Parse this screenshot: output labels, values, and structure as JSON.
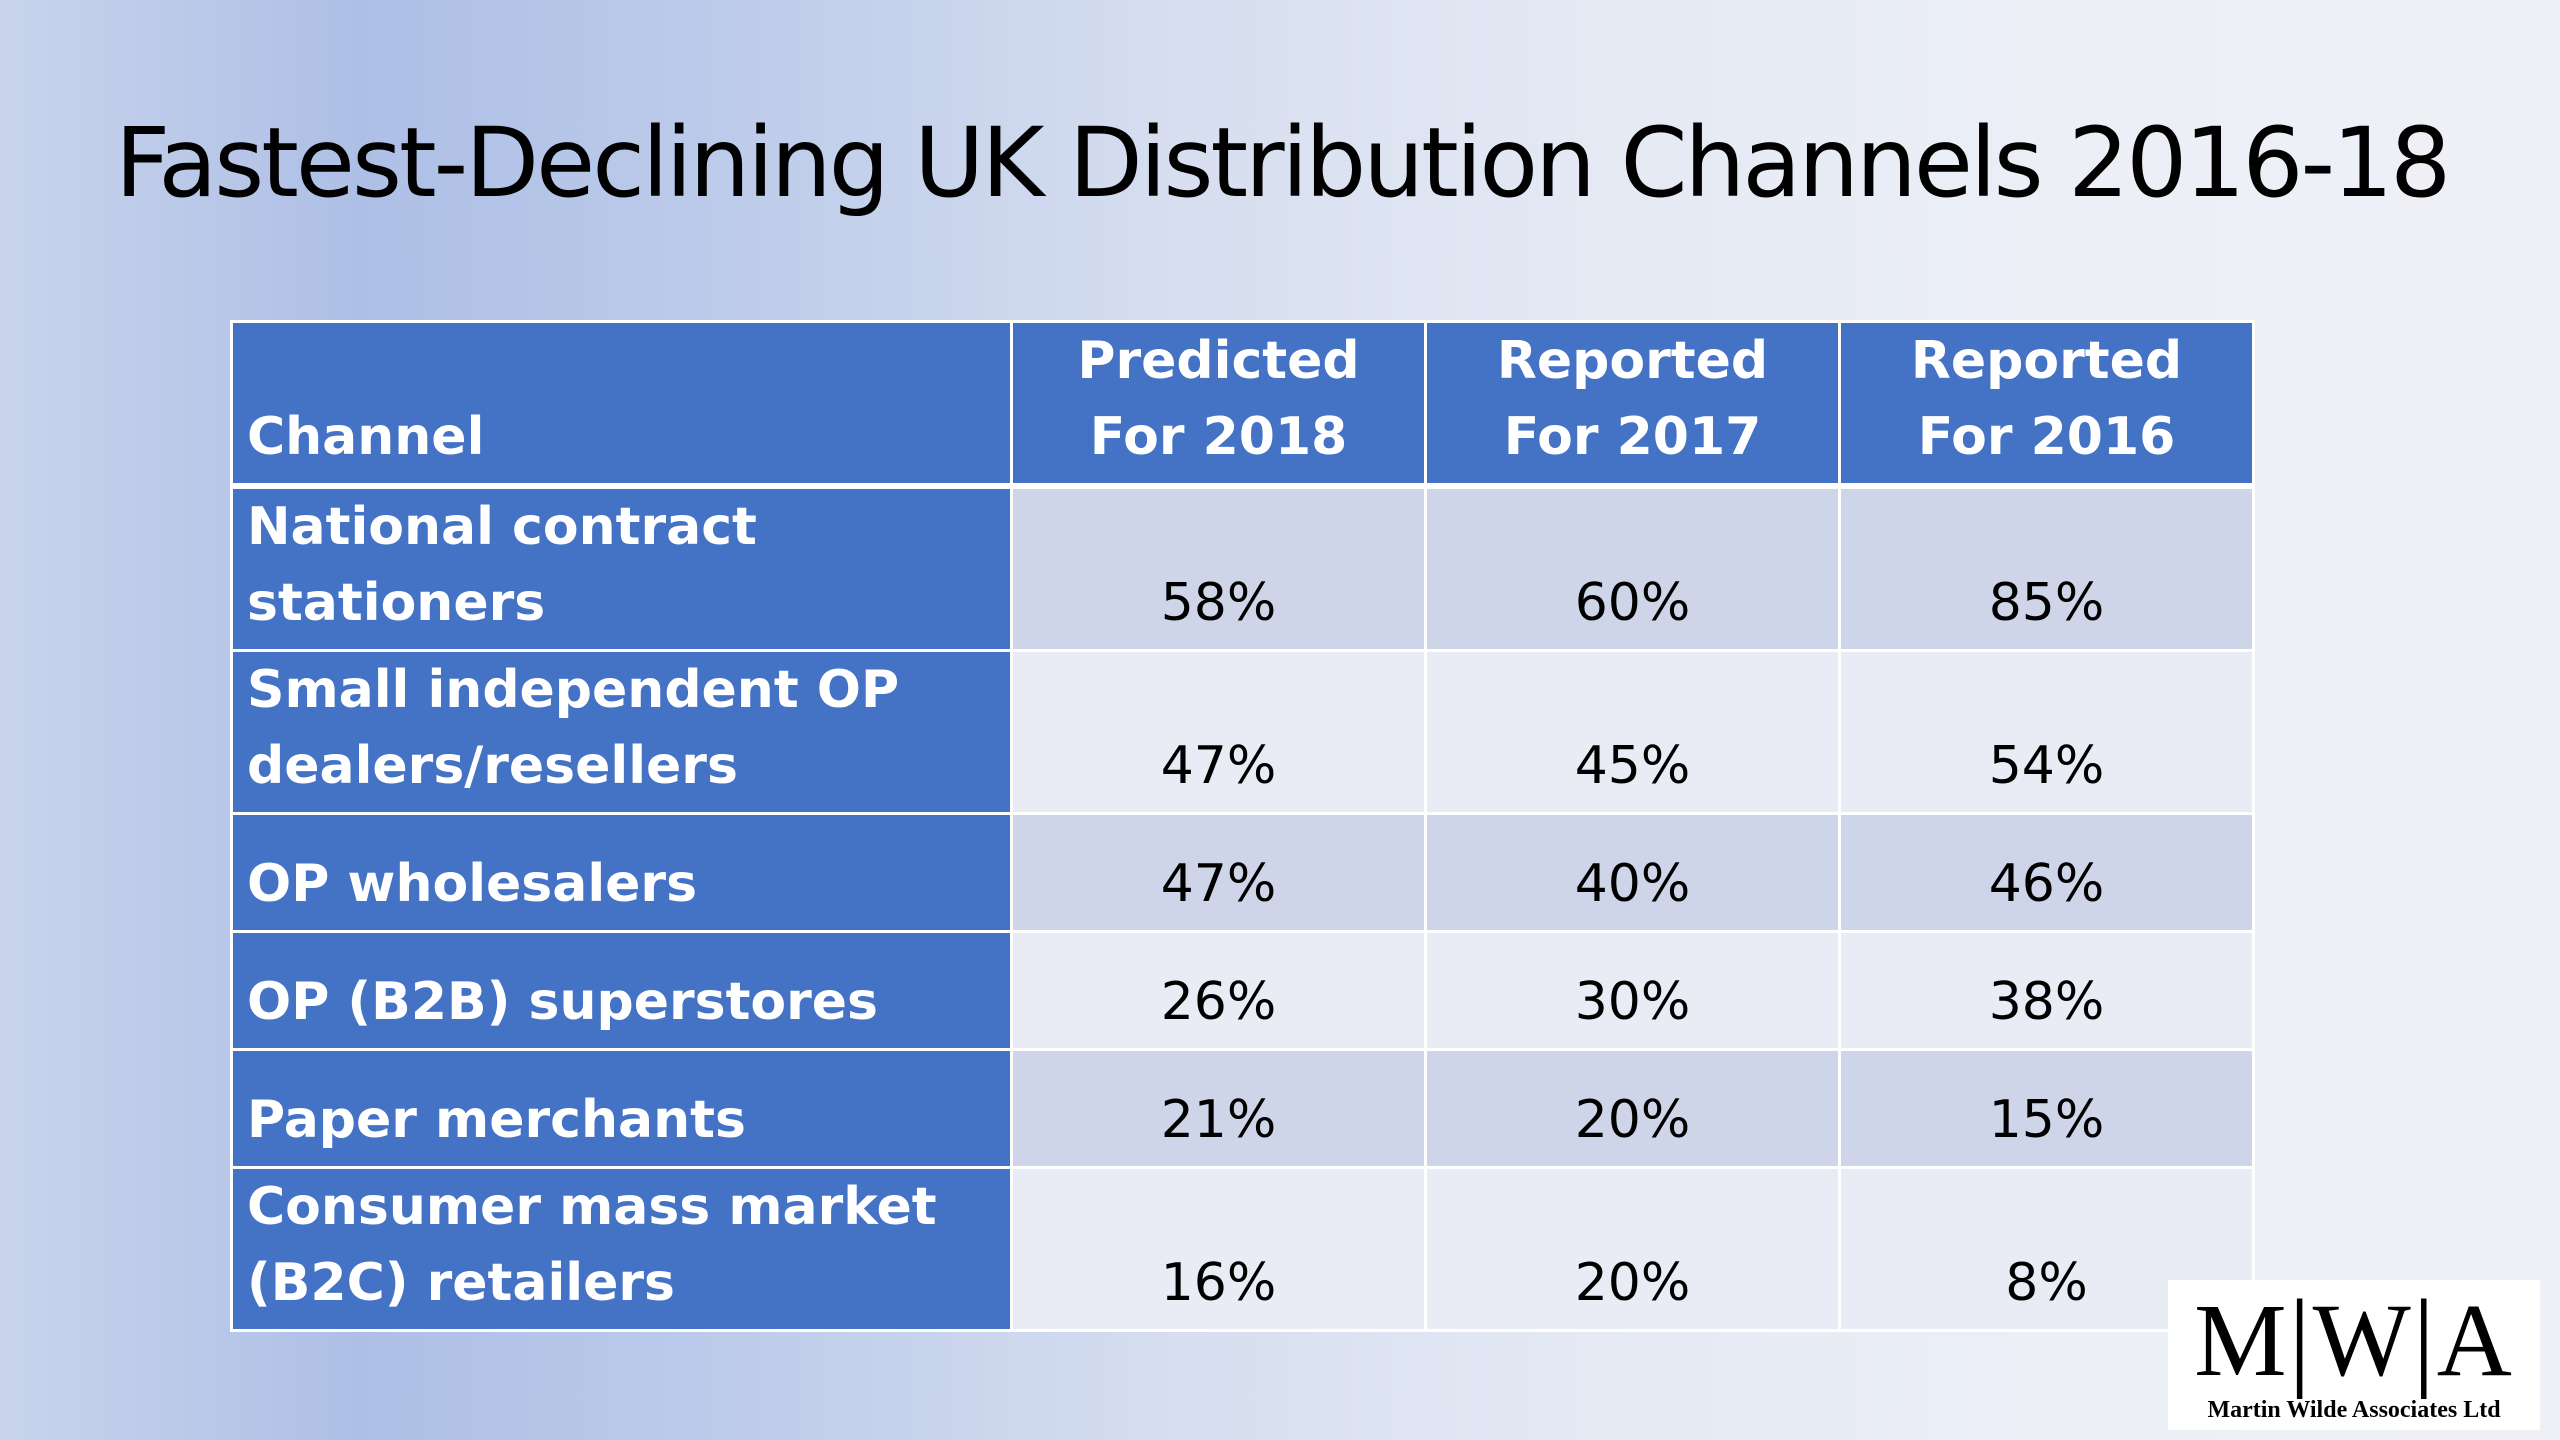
{
  "slide": {
    "title": "Fastest-Declining UK Distribution Channels 2016-18"
  },
  "table": {
    "headers": [
      "Channel",
      "Predicted For 2018",
      "Reported For 2017",
      "Reported For 2016"
    ],
    "rows": [
      {
        "channel": "National contract stationers",
        "values": [
          "58%",
          "60%",
          "85%"
        ]
      },
      {
        "channel": "Small independent OP dealers/resellers",
        "values": [
          "47%",
          "45%",
          "54%"
        ]
      },
      {
        "channel": "OP wholesalers",
        "values": [
          "47%",
          "40%",
          "46%"
        ]
      },
      {
        "channel": "OP (B2B) superstores",
        "values": [
          "26%",
          "30%",
          "38%"
        ]
      },
      {
        "channel": "Paper merchants",
        "values": [
          "21%",
          "20%",
          "15%"
        ]
      },
      {
        "channel": "Consumer mass market (B2C) retailers",
        "values": [
          "16%",
          "20%",
          "8%"
        ]
      }
    ]
  },
  "logo": {
    "letters": [
      "M",
      "W",
      "A"
    ],
    "separator": "|",
    "caption": "Martin Wilde Associates Ltd"
  },
  "colors": {
    "header_fill": "#4472c4",
    "row_band_dark": "#cfd5e9",
    "row_band_light": "#e9ebf5",
    "header_text": "#ffffff"
  }
}
